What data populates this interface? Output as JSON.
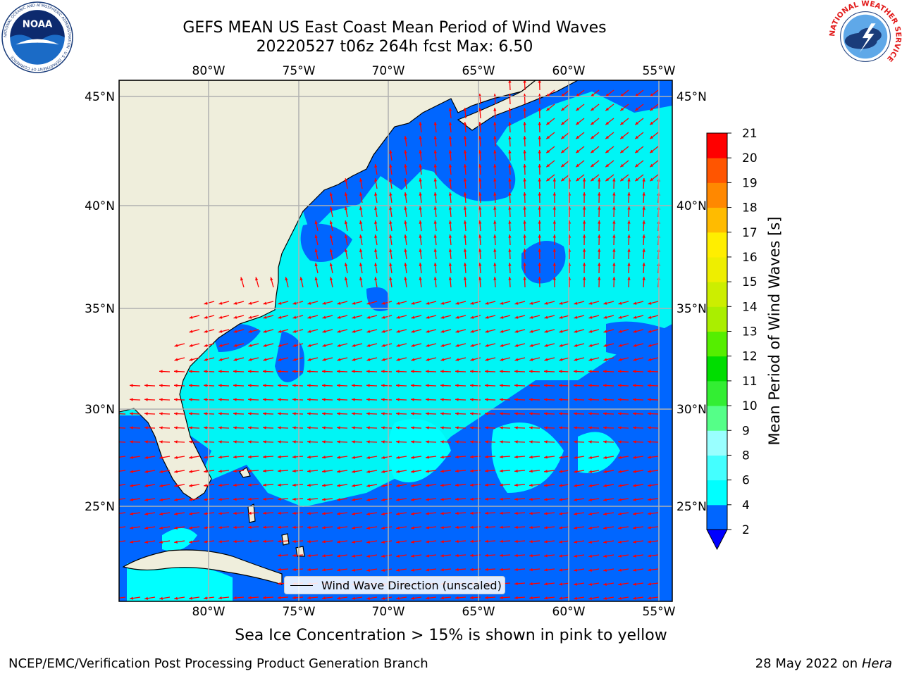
{
  "header": {
    "title_line1": "GEFS MEAN US East Coast Mean Period of Wind Waves",
    "title_line2": "20220527 t06z 264h fcst   Max: 6.50"
  },
  "logos": {
    "left": {
      "name": "noaa-logo-icon",
      "text": "NOAA",
      "ring_text": "NATIONAL OCEANIC AND ATMOSPHERIC ADMINISTRATION · U.S. DEPARTMENT OF COMMERCE"
    },
    "right": {
      "name": "nws-logo-icon",
      "ring_text": "NATIONAL WEATHER SERVICE"
    }
  },
  "map": {
    "lon_range": [
      -85,
      -54
    ],
    "lat_range": [
      20.5,
      46
    ],
    "lon_ticks": [
      "80°W",
      "75°W",
      "70°W",
      "65°W",
      "60°W",
      "55°W"
    ],
    "lat_ticks": [
      "45°N",
      "40°N",
      "35°N",
      "30°N",
      "25°N"
    ],
    "grid": true,
    "land_color": "#efeedc",
    "legend_label": "Wind Wave Direction (unscaled)",
    "arrow_color": "#ff0000"
  },
  "colorbar": {
    "title": "Mean Period of Wind Waves [s]",
    "ticks": [
      "2",
      "4",
      "6",
      "8",
      "9",
      "10",
      "11",
      "12",
      "13",
      "14",
      "15",
      "16",
      "17",
      "18",
      "19",
      "20",
      "21"
    ],
    "under_color": "#0000ff",
    "colors": [
      "#0066ff",
      "#00ffff",
      "#44ffff",
      "#99ffff",
      "#55ff88",
      "#33ee33",
      "#00dd00",
      "#55ee00",
      "#aaee00",
      "#ccee00",
      "#eeee00",
      "#ffee00",
      "#ffbb00",
      "#ff8800",
      "#ff5500",
      "#ff2200"
    ],
    "top_color": "#ff0000"
  },
  "footer": {
    "note": "Sea Ice Concentration > 15% is shown in pink to yellow",
    "left": "NCEP/EMC/Verification Post Processing Product Generation Branch",
    "right_date": "28 May 2022 on",
    "right_host": "Hera"
  }
}
